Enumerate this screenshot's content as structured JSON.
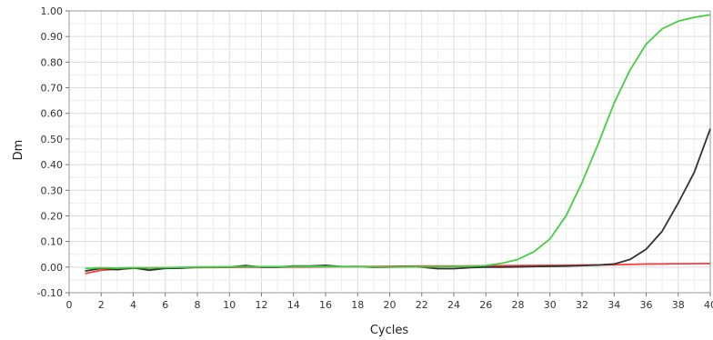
{
  "chart_data": {
    "type": "line",
    "title": "",
    "xlabel": "Cycles",
    "ylabel": "Dm",
    "xlim": [
      0,
      40
    ],
    "ylim": [
      -0.1,
      1.0
    ],
    "grid": true,
    "xticks": [
      0,
      2,
      4,
      6,
      8,
      10,
      12,
      14,
      16,
      18,
      20,
      22,
      24,
      26,
      28,
      30,
      32,
      34,
      36,
      38,
      40
    ],
    "xtick_labels": [
      "0",
      "2",
      "4",
      "6",
      "8",
      "10",
      "12",
      "14",
      "16",
      "18",
      "20",
      "22",
      "24",
      "26",
      "28",
      "30",
      "32",
      "34",
      "36",
      "38",
      "40"
    ],
    "yticks": [
      -0.1,
      0,
      0.1,
      0.2,
      0.3,
      0.4,
      0.5,
      0.6,
      0.7,
      0.8,
      0.9,
      1.0
    ],
    "ytick_labels": [
      "-0.10",
      "0.00",
      "0.10",
      "0.20",
      "0.30",
      "0.40",
      "0.50",
      "0.60",
      "0.70",
      "0.80",
      "0.90",
      "1.00"
    ],
    "series": [
      {
        "color": "#ff3b3b",
        "x": [
          1,
          2,
          3,
          4,
          5,
          6,
          8,
          10,
          12,
          14,
          16,
          18,
          20,
          22,
          24,
          26,
          28,
          30,
          32,
          34,
          36,
          38,
          40
        ],
        "y": [
          -0.025,
          -0.012,
          -0.008,
          -0.005,
          -0.004,
          -0.003,
          -0.002,
          -0.001,
          0.0,
          0.0,
          0.001,
          0.002,
          0.003,
          0.004,
          0.004,
          0.005,
          0.006,
          0.007,
          0.008,
          0.009,
          0.012,
          0.013,
          0.014
        ]
      },
      {
        "color": "#333333",
        "x": [
          1,
          2,
          3,
          4,
          5,
          6,
          7,
          8,
          9,
          10,
          11,
          12,
          13,
          14,
          15,
          16,
          17,
          18,
          19,
          20,
          21,
          22,
          23,
          24,
          25,
          26,
          27,
          28,
          29,
          30,
          31,
          32,
          33,
          34,
          35,
          36,
          37,
          38,
          39,
          40
        ],
        "y": [
          -0.015,
          -0.005,
          -0.01,
          -0.003,
          -0.012,
          -0.005,
          -0.004,
          0.0,
          0.0,
          0.0,
          0.006,
          0.0,
          0.0,
          0.004,
          0.004,
          0.007,
          0.002,
          0.002,
          -0.001,
          0.0,
          0.002,
          0.0,
          -0.006,
          -0.006,
          -0.002,
          0.0,
          0.0,
          0.001,
          0.002,
          0.003,
          0.004,
          0.006,
          0.008,
          0.012,
          0.03,
          0.07,
          0.14,
          0.25,
          0.37,
          0.54
        ]
      },
      {
        "color": "#44d044",
        "x": [
          1,
          2,
          3,
          4,
          5,
          6,
          8,
          10,
          12,
          14,
          16,
          18,
          20,
          22,
          24,
          25,
          26,
          27,
          28,
          29,
          30,
          31,
          32,
          33,
          34,
          35,
          36,
          37,
          38,
          39,
          40
        ],
        "y": [
          -0.005,
          -0.003,
          -0.004,
          -0.002,
          -0.003,
          -0.002,
          0.0,
          0.001,
          0.002,
          0.002,
          0.003,
          0.001,
          0.0,
          0.001,
          0.002,
          0.003,
          0.006,
          0.015,
          0.03,
          0.06,
          0.11,
          0.2,
          0.33,
          0.48,
          0.64,
          0.77,
          0.87,
          0.93,
          0.96,
          0.975,
          0.985
        ]
      }
    ]
  }
}
